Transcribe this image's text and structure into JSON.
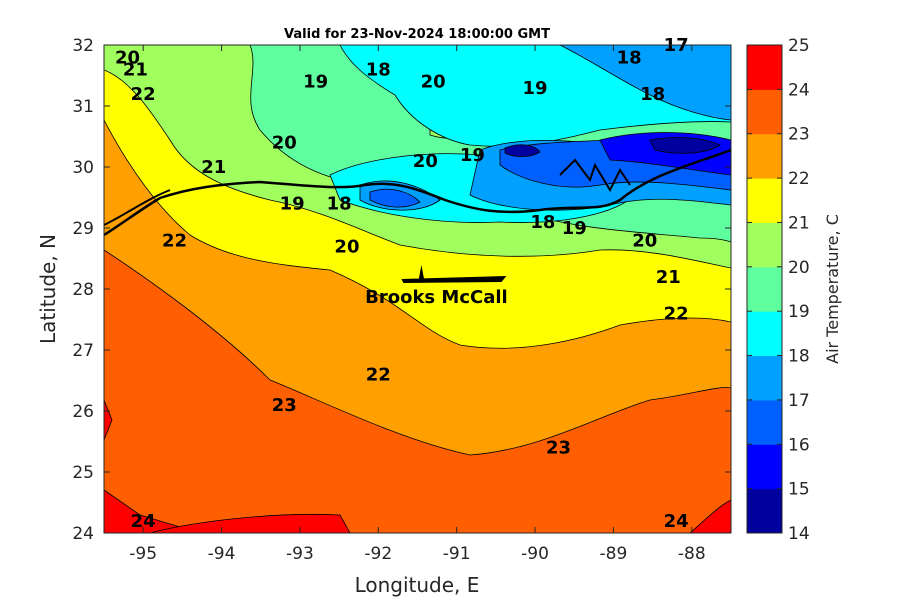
{
  "title": "Valid for 23-Nov-2024 18:00:00 GMT",
  "map": {
    "xlabel": "Longitude, E",
    "ylabel": "Latitude, N",
    "xlim": [
      -95.5,
      -87.5
    ],
    "ylim": [
      24,
      32
    ],
    "xticks": [
      "-95",
      "-94",
      "-93",
      "-92",
      "-91",
      "-90",
      "-89",
      "-88"
    ],
    "yticks": [
      "24",
      "25",
      "26",
      "27",
      "28",
      "29",
      "30",
      "31",
      "32"
    ],
    "vessel": {
      "name": "Brooks McCall",
      "lon": -91.45,
      "lat": 28.0
    }
  },
  "colorbar": {
    "label": "Air Temperature, C",
    "ticks": [
      "14",
      "15",
      "16",
      "17",
      "18",
      "19",
      "20",
      "21",
      "22",
      "23",
      "24",
      "25"
    ],
    "colors": [
      "#00009f",
      "#0000ff",
      "#005fff",
      "#00a0ff",
      "#00ffff",
      "#5fffa0",
      "#a0ff5f",
      "#ffff00",
      "#ffa000",
      "#ff5f00",
      "#ff0000",
      "#a00000"
    ]
  },
  "chart_data": {
    "type": "heatmap",
    "variable": "Air Temperature",
    "units": "C",
    "contour_levels": [
      14,
      15,
      16,
      17,
      18,
      19,
      20,
      21,
      22,
      23,
      24,
      25
    ],
    "contour_labels": [
      {
        "text": "20",
        "lon": -95.2,
        "lat": 31.7
      },
      {
        "text": "21",
        "lon": -95.1,
        "lat": 31.5
      },
      {
        "text": "22",
        "lon": -95.0,
        "lat": 31.1
      },
      {
        "text": "19",
        "lon": -92.8,
        "lat": 31.3
      },
      {
        "text": "18",
        "lon": -92.0,
        "lat": 31.5
      },
      {
        "text": "20",
        "lon": -91.3,
        "lat": 31.3
      },
      {
        "text": "19",
        "lon": -90.0,
        "lat": 31.2
      },
      {
        "text": "18",
        "lon": -88.8,
        "lat": 31.7
      },
      {
        "text": "17",
        "lon": -88.2,
        "lat": 31.9
      },
      {
        "text": "18",
        "lon": -88.5,
        "lat": 31.1
      },
      {
        "text": "20",
        "lon": -93.2,
        "lat": 30.3
      },
      {
        "text": "21",
        "lon": -94.1,
        "lat": 29.9
      },
      {
        "text": "20",
        "lon": -91.4,
        "lat": 30.0
      },
      {
        "text": "19",
        "lon": -90.8,
        "lat": 30.1
      },
      {
        "text": "19",
        "lon": -93.1,
        "lat": 29.3
      },
      {
        "text": "18",
        "lon": -92.5,
        "lat": 29.3
      },
      {
        "text": "22",
        "lon": -94.6,
        "lat": 28.7
      },
      {
        "text": "20",
        "lon": -92.4,
        "lat": 28.6
      },
      {
        "text": "18",
        "lon": -89.9,
        "lat": 29.0
      },
      {
        "text": "19",
        "lon": -89.5,
        "lat": 28.9
      },
      {
        "text": "20",
        "lon": -88.6,
        "lat": 28.7
      },
      {
        "text": "21",
        "lon": -88.3,
        "lat": 28.1
      },
      {
        "text": "22",
        "lon": -88.2,
        "lat": 27.5
      },
      {
        "text": "22",
        "lon": -92.0,
        "lat": 26.5
      },
      {
        "text": "23",
        "lon": -93.2,
        "lat": 26.0
      },
      {
        "text": "23",
        "lon": -89.7,
        "lat": 25.3
      },
      {
        "text": "24",
        "lon": -95.0,
        "lat": 24.1
      },
      {
        "text": "24",
        "lon": -88.2,
        "lat": 24.1
      }
    ]
  }
}
